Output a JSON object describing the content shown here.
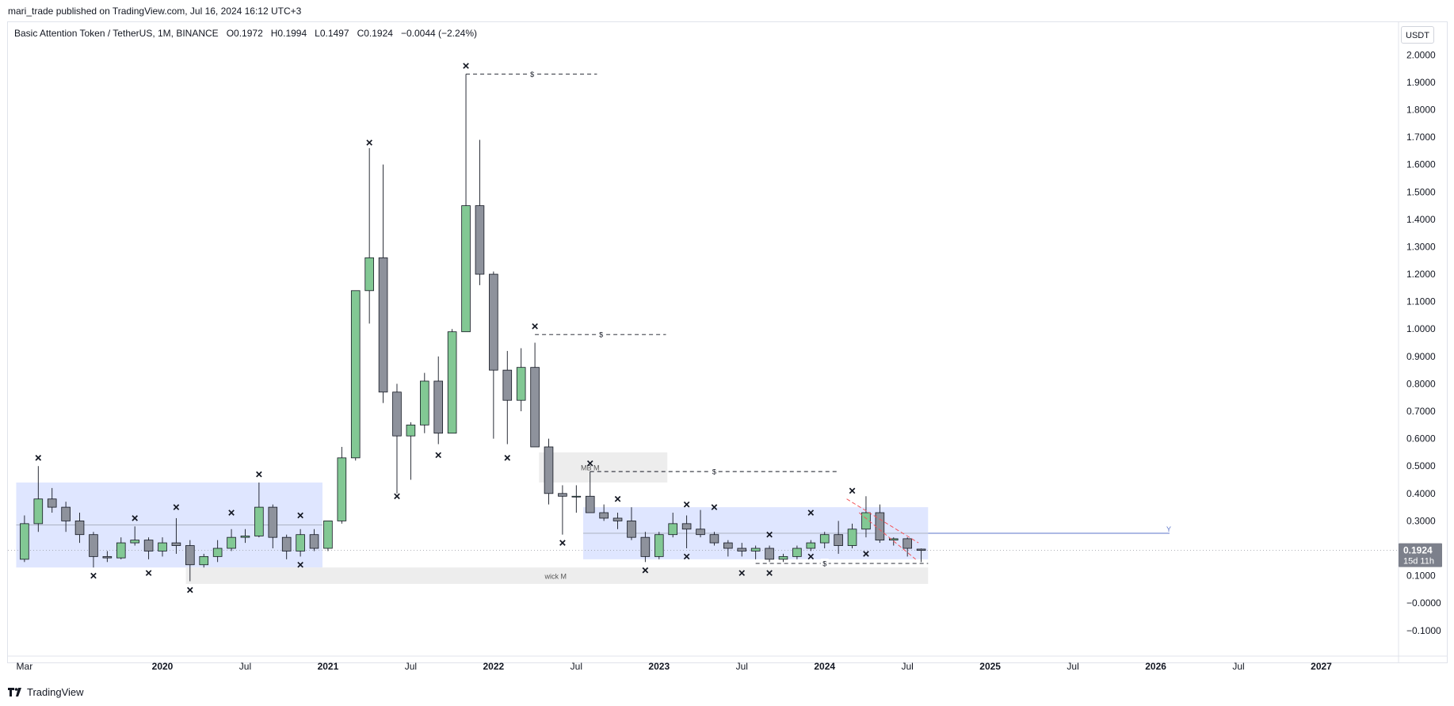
{
  "header": {
    "published": "mari_trade published on TradingView.com, Jul 16, 2024 16:12 UTC+3"
  },
  "legend": {
    "symbol": "Basic Attention Token / TetherUS, 1M, BINANCE",
    "open": "O0.1972",
    "high": "H0.1994",
    "low": "L0.1497",
    "close": "C0.1924",
    "change": "−0.0044 (−2.24%)"
  },
  "price_axis": {
    "unit_label": "USDT",
    "last_price": "0.1924",
    "countdown": "15d 11h"
  },
  "footer": {
    "brand": "TradingView"
  },
  "colors": {
    "up": "#82c894",
    "down": "#8e929c",
    "zone": "#dbe3ff",
    "grey_zone": "#ececec",
    "level_line": "#5b74c9",
    "trend_line": "#f2555a"
  },
  "chart_data": {
    "type": "candlestick",
    "title": "",
    "ylim": [
      -0.17,
      2.05
    ],
    "y_ticks": [
      {
        "v": 2.0,
        "label": "2.0000"
      },
      {
        "v": 1.9,
        "label": "1.9000"
      },
      {
        "v": 1.8,
        "label": "1.8000"
      },
      {
        "v": 1.7,
        "label": "1.7000"
      },
      {
        "v": 1.6,
        "label": "1.6000"
      },
      {
        "v": 1.5,
        "label": "1.5000"
      },
      {
        "v": 1.4,
        "label": "1.4000"
      },
      {
        "v": 1.3,
        "label": "1.3000"
      },
      {
        "v": 1.2,
        "label": "1.2000"
      },
      {
        "v": 1.1,
        "label": "1.1000"
      },
      {
        "v": 1.0,
        "label": "1.0000"
      },
      {
        "v": 0.9,
        "label": "0.9000"
      },
      {
        "v": 0.8,
        "label": "0.8000"
      },
      {
        "v": 0.7,
        "label": "0.7000"
      },
      {
        "v": 0.6,
        "label": "0.6000"
      },
      {
        "v": 0.5,
        "label": "0.5000"
      },
      {
        "v": 0.4,
        "label": "0.4000"
      },
      {
        "v": 0.3,
        "label": "0.3000"
      },
      {
        "v": 0.2,
        "label": "0.2000"
      },
      {
        "v": 0.1,
        "label": "0.1000"
      },
      {
        "v": 0.0,
        "label": "−0.0000"
      },
      {
        "v": -0.1,
        "label": "−0.1000"
      }
    ],
    "x_ticks": [
      {
        "i": 0,
        "label": "Mar",
        "year": false
      },
      {
        "i": 10,
        "label": "2020",
        "year": true
      },
      {
        "i": 16,
        "label": "Jul",
        "year": false
      },
      {
        "i": 22,
        "label": "2021",
        "year": true
      },
      {
        "i": 28,
        "label": "Jul",
        "year": false
      },
      {
        "i": 34,
        "label": "2022",
        "year": true
      },
      {
        "i": 40,
        "label": "Jul",
        "year": false
      },
      {
        "i": 46,
        "label": "2023",
        "year": true
      },
      {
        "i": 52,
        "label": "Jul",
        "year": false
      },
      {
        "i": 58,
        "label": "2024",
        "year": true
      },
      {
        "i": 64,
        "label": "Jul",
        "year": false
      },
      {
        "i": 70,
        "label": "2025",
        "year": true
      },
      {
        "i": 76,
        "label": "Jul",
        "year": false
      },
      {
        "i": 82,
        "label": "2026",
        "year": true
      },
      {
        "i": 88,
        "label": "Jul",
        "year": false
      },
      {
        "i": 94,
        "label": "2027",
        "year": true
      }
    ],
    "x_range": [
      -1.2,
      99.6
    ],
    "candles": [
      {
        "o": 0.16,
        "h": 0.32,
        "l": 0.15,
        "c": 0.29
      },
      {
        "o": 0.29,
        "h": 0.5,
        "l": 0.26,
        "c": 0.38
      },
      {
        "o": 0.38,
        "h": 0.42,
        "l": 0.33,
        "c": 0.35
      },
      {
        "o": 0.35,
        "h": 0.37,
        "l": 0.26,
        "c": 0.3
      },
      {
        "o": 0.3,
        "h": 0.33,
        "l": 0.22,
        "c": 0.25
      },
      {
        "o": 0.25,
        "h": 0.26,
        "l": 0.13,
        "c": 0.17
      },
      {
        "o": 0.17,
        "h": 0.19,
        "l": 0.15,
        "c": 0.165
      },
      {
        "o": 0.165,
        "h": 0.24,
        "l": 0.16,
        "c": 0.22
      },
      {
        "o": 0.22,
        "h": 0.28,
        "l": 0.21,
        "c": 0.23
      },
      {
        "o": 0.23,
        "h": 0.24,
        "l": 0.16,
        "c": 0.19
      },
      {
        "o": 0.19,
        "h": 0.24,
        "l": 0.17,
        "c": 0.22
      },
      {
        "o": 0.22,
        "h": 0.31,
        "l": 0.18,
        "c": 0.21
      },
      {
        "o": 0.21,
        "h": 0.23,
        "l": 0.08,
        "c": 0.14
      },
      {
        "o": 0.14,
        "h": 0.18,
        "l": 0.13,
        "c": 0.17
      },
      {
        "o": 0.17,
        "h": 0.23,
        "l": 0.15,
        "c": 0.2
      },
      {
        "o": 0.2,
        "h": 0.27,
        "l": 0.19,
        "c": 0.24
      },
      {
        "o": 0.24,
        "h": 0.27,
        "l": 0.22,
        "c": 0.245
      },
      {
        "o": 0.245,
        "h": 0.44,
        "l": 0.24,
        "c": 0.35
      },
      {
        "o": 0.35,
        "h": 0.36,
        "l": 0.2,
        "c": 0.24
      },
      {
        "o": 0.24,
        "h": 0.25,
        "l": 0.16,
        "c": 0.19
      },
      {
        "o": 0.19,
        "h": 0.27,
        "l": 0.17,
        "c": 0.25
      },
      {
        "o": 0.25,
        "h": 0.27,
        "l": 0.19,
        "c": 0.2
      },
      {
        "o": 0.2,
        "h": 0.3,
        "l": 0.19,
        "c": 0.3
      },
      {
        "o": 0.3,
        "h": 0.57,
        "l": 0.29,
        "c": 0.53
      },
      {
        "o": 0.53,
        "h": 1.14,
        "l": 0.52,
        "c": 1.14
      },
      {
        "o": 1.14,
        "h": 1.66,
        "l": 1.02,
        "c": 1.26
      },
      {
        "o": 1.26,
        "h": 1.6,
        "l": 0.73,
        "c": 0.77
      },
      {
        "o": 0.77,
        "h": 0.8,
        "l": 0.4,
        "c": 0.61
      },
      {
        "o": 0.61,
        "h": 0.66,
        "l": 0.45,
        "c": 0.65
      },
      {
        "o": 0.65,
        "h": 0.84,
        "l": 0.62,
        "c": 0.81
      },
      {
        "o": 0.81,
        "h": 0.9,
        "l": 0.58,
        "c": 0.62
      },
      {
        "o": 0.62,
        "h": 1.0,
        "l": 0.62,
        "c": 0.99
      },
      {
        "o": 0.99,
        "h": 1.93,
        "l": 0.99,
        "c": 1.45
      },
      {
        "o": 1.45,
        "h": 1.69,
        "l": 1.16,
        "c": 1.2
      },
      {
        "o": 1.2,
        "h": 1.21,
        "l": 0.6,
        "c": 0.85
      },
      {
        "o": 0.85,
        "h": 0.92,
        "l": 0.58,
        "c": 0.74
      },
      {
        "o": 0.74,
        "h": 0.93,
        "l": 0.7,
        "c": 0.86
      },
      {
        "o": 0.86,
        "h": 0.95,
        "l": 0.57,
        "c": 0.57
      },
      {
        "o": 0.57,
        "h": 0.6,
        "l": 0.36,
        "c": 0.4
      },
      {
        "o": 0.4,
        "h": 0.43,
        "l": 0.25,
        "c": 0.39
      },
      {
        "o": 0.39,
        "h": 0.43,
        "l": 0.33,
        "c": 0.39
      },
      {
        "o": 0.39,
        "h": 0.48,
        "l": 0.33,
        "c": 0.33
      },
      {
        "o": 0.33,
        "h": 0.36,
        "l": 0.3,
        "c": 0.31
      },
      {
        "o": 0.31,
        "h": 0.33,
        "l": 0.27,
        "c": 0.3
      },
      {
        "o": 0.3,
        "h": 0.35,
        "l": 0.23,
        "c": 0.24
      },
      {
        "o": 0.24,
        "h": 0.26,
        "l": 0.15,
        "c": 0.17
      },
      {
        "o": 0.17,
        "h": 0.26,
        "l": 0.16,
        "c": 0.25
      },
      {
        "o": 0.25,
        "h": 0.33,
        "l": 0.24,
        "c": 0.29
      },
      {
        "o": 0.29,
        "h": 0.32,
        "l": 0.2,
        "c": 0.27
      },
      {
        "o": 0.27,
        "h": 0.34,
        "l": 0.24,
        "c": 0.25
      },
      {
        "o": 0.25,
        "h": 0.26,
        "l": 0.21,
        "c": 0.22
      },
      {
        "o": 0.22,
        "h": 0.23,
        "l": 0.17,
        "c": 0.2
      },
      {
        "o": 0.2,
        "h": 0.22,
        "l": 0.17,
        "c": 0.19
      },
      {
        "o": 0.19,
        "h": 0.21,
        "l": 0.16,
        "c": 0.2
      },
      {
        "o": 0.2,
        "h": 0.21,
        "l": 0.15,
        "c": 0.16
      },
      {
        "o": 0.16,
        "h": 0.18,
        "l": 0.15,
        "c": 0.17
      },
      {
        "o": 0.17,
        "h": 0.21,
        "l": 0.16,
        "c": 0.2
      },
      {
        "o": 0.2,
        "h": 0.23,
        "l": 0.19,
        "c": 0.22
      },
      {
        "o": 0.22,
        "h": 0.26,
        "l": 0.2,
        "c": 0.25
      },
      {
        "o": 0.25,
        "h": 0.3,
        "l": 0.18,
        "c": 0.21
      },
      {
        "o": 0.21,
        "h": 0.29,
        "l": 0.2,
        "c": 0.27
      },
      {
        "o": 0.27,
        "h": 0.39,
        "l": 0.24,
        "c": 0.33
      },
      {
        "o": 0.33,
        "h": 0.36,
        "l": 0.22,
        "c": 0.23
      },
      {
        "o": 0.23,
        "h": 0.24,
        "l": 0.21,
        "c": 0.235
      },
      {
        "o": 0.235,
        "h": 0.24,
        "l": 0.17,
        "c": 0.2
      },
      {
        "o": 0.1972,
        "h": 0.1994,
        "l": 0.1497,
        "c": 0.1924
      }
    ],
    "markers": [
      {
        "i": 1,
        "y": 0.53
      },
      {
        "i": 5,
        "y": 0.1
      },
      {
        "i": 8,
        "y": 0.31
      },
      {
        "i": 9,
        "y": 0.11
      },
      {
        "i": 11,
        "y": 0.35
      },
      {
        "i": 12,
        "y": 0.048
      },
      {
        "i": 15,
        "y": 0.33
      },
      {
        "i": 17,
        "y": 0.47
      },
      {
        "i": 20,
        "y": 0.32
      },
      {
        "i": 20,
        "y": 0.14
      },
      {
        "i": 25,
        "y": 1.68
      },
      {
        "i": 27,
        "y": 0.39
      },
      {
        "i": 30,
        "y": 0.54
      },
      {
        "i": 32,
        "y": 1.96
      },
      {
        "i": 35,
        "y": 0.53
      },
      {
        "i": 37,
        "y": 1.01
      },
      {
        "i": 39,
        "y": 0.22
      },
      {
        "i": 41,
        "y": 0.51
      },
      {
        "i": 43,
        "y": 0.38
      },
      {
        "i": 45,
        "y": 0.12
      },
      {
        "i": 48,
        "y": 0.36
      },
      {
        "i": 48,
        "y": 0.17
      },
      {
        "i": 50,
        "y": 0.35
      },
      {
        "i": 52,
        "y": 0.11
      },
      {
        "i": 54,
        "y": 0.25
      },
      {
        "i": 54,
        "y": 0.11
      },
      {
        "i": 57,
        "y": 0.33
      },
      {
        "i": 57,
        "y": 0.17
      },
      {
        "i": 60,
        "y": 0.41
      },
      {
        "i": 61,
        "y": 0.18
      }
    ],
    "zones": [
      {
        "i0": -0.6,
        "i1": 21.6,
        "y0": 0.13,
        "y1": 0.44,
        "kind": "blue"
      },
      {
        "i0": 40.5,
        "i1": 65.5,
        "y0": 0.16,
        "y1": 0.35,
        "kind": "blue"
      },
      {
        "i0": 37.3,
        "i1": 46.6,
        "y0": 0.44,
        "y1": 0.55,
        "kind": "grey"
      },
      {
        "i0": 11.7,
        "i1": 65.5,
        "y0": 0.07,
        "y1": 0.13,
        "kind": "grey"
      }
    ],
    "zone_labels": [
      {
        "i": 41.0,
        "y": 0.497,
        "text": "MB M"
      },
      {
        "i": 38.5,
        "y": 0.1,
        "text": "wick M"
      }
    ],
    "dashed_levels": [
      {
        "i0": 32.0,
        "i1": 41.5,
        "y": 1.93,
        "label": "$",
        "li": 36.8
      },
      {
        "i0": 37.0,
        "i1": 46.5,
        "y": 0.98,
        "label": "$",
        "li": 41.8
      },
      {
        "i0": 41.0,
        "i1": 59.0,
        "y": 0.48,
        "label": "$",
        "li": 50.0
      },
      {
        "i0": 53.0,
        "i1": 65.5,
        "y": 0.145,
        "label": "$",
        "li": 58.0
      }
    ],
    "horizontal_levels": [
      {
        "i0": 65.5,
        "i1": 83.0,
        "y": 0.255,
        "label": "Y"
      }
    ],
    "zone_midlines": [
      {
        "i0": -0.6,
        "i1": 21.6,
        "y": 0.285
      },
      {
        "i0": 40.5,
        "i1": 65.5,
        "y": 0.255
      }
    ],
    "trend_lines": [
      {
        "i0": 59.6,
        "y0": 0.38,
        "i1": 64.8,
        "y1": 0.22
      },
      {
        "i0": 60.5,
        "y0": 0.33,
        "i1": 64.6,
        "y1": 0.16
      }
    ],
    "last_price_value": 0.1924
  }
}
